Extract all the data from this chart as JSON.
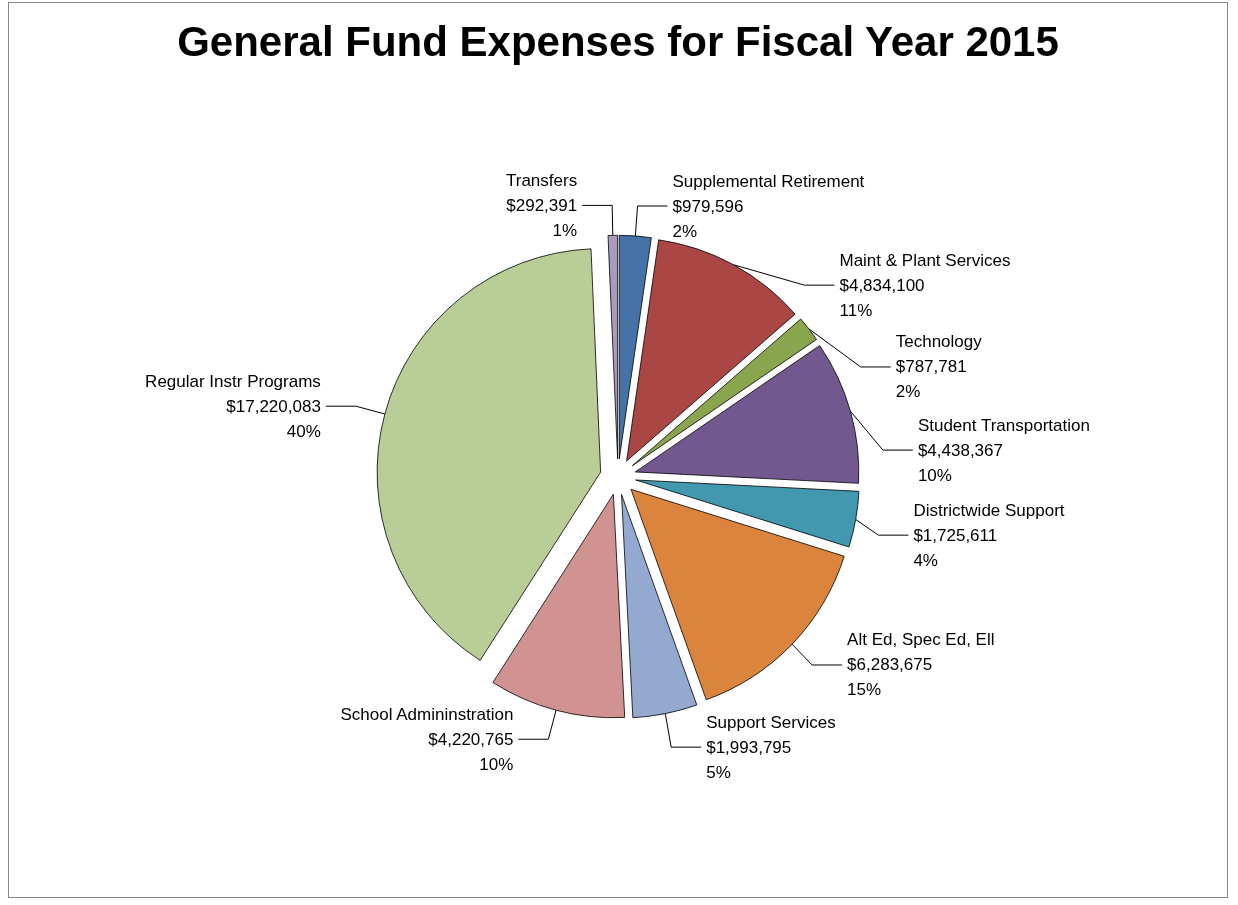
{
  "chart_data": {
    "type": "pie",
    "title": "General Fund Expenses for Fiscal Year 2015",
    "categories": [
      "Supplemental Retirement",
      "Maint & Plant Services",
      "Technology",
      "Student Transportation",
      "Districtwide Support",
      "Alt Ed, Spec Ed, Ell",
      "Support Services",
      "School Admininstration",
      "Regular Instr Programs",
      "Transfers"
    ],
    "values": [
      979596,
      4834100,
      787781,
      4438367,
      1725611,
      6283675,
      1993795,
      4220765,
      17220083,
      292391
    ],
    "value_labels": [
      "$979,596\n2%",
      "$4,834,100\n11%",
      "$787,781\n2%",
      "$4,438,367\n10%",
      "$1,725,611\n4%",
      "$6,283,675\n15%",
      "$1,993,795\n5%",
      "$4,220,765\n10%",
      "$17,220,083\n40%",
      "$292,391\n1%"
    ],
    "colors": [
      "#4572a7",
      "#aa4643",
      "#89a54e",
      "#71588f",
      "#4198af",
      "#db843d",
      "#93a9cf",
      "#d19392",
      "#b9cd96",
      "#a99bbd"
    ],
    "legend": false
  }
}
